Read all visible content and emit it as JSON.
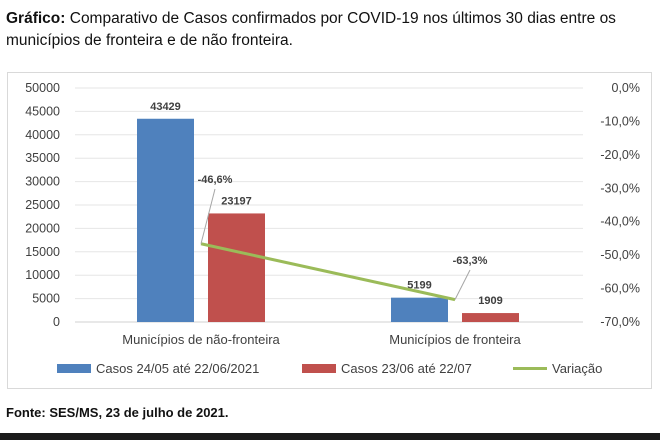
{
  "caption": {
    "label": "Gráfico:",
    "text": " Comparativo de Casos confirmados por COVID-19 nos últimos 30 dias entre os municípios de fronteira e de não fronteira."
  },
  "source": "Fonte: SES/MS, 23 de julho de 2021.",
  "chart_data": {
    "type": "bar",
    "title": "",
    "categories": [
      "Municípios de não-fronteira",
      "Municípios de fronteira"
    ],
    "series": [
      {
        "name": "Casos 24/05 até 22/06/2021",
        "type": "bar",
        "axis": "left",
        "color": "#4f81bd",
        "values": [
          43429,
          5199
        ],
        "labels": [
          "43429",
          "5199"
        ]
      },
      {
        "name": "Casos 23/06 até 22/07",
        "type": "bar",
        "axis": "left",
        "color": "#c0504d",
        "values": [
          23197,
          1909
        ],
        "labels": [
          "23197",
          "1909"
        ]
      },
      {
        "name": "Variação",
        "type": "line",
        "axis": "right",
        "color": "#9bbb59",
        "values": [
          -46.6,
          -63.3
        ],
        "labels": [
          "-46,6%",
          "-63,3%"
        ]
      }
    ],
    "left_axis": {
      "ylim": [
        0,
        50000
      ],
      "ticks": [
        "0",
        "5000",
        "10000",
        "15000",
        "20000",
        "25000",
        "30000",
        "35000",
        "40000",
        "45000",
        "50000"
      ]
    },
    "right_axis": {
      "ylim": [
        -70,
        0
      ],
      "ticks": [
        "-70,0%",
        "-60,0%",
        "-50,0%",
        "-40,0%",
        "-30,0%",
        "-20,0%",
        "-10,0%",
        "0,0%"
      ]
    },
    "grid": true,
    "legend_position": "bottom"
  }
}
